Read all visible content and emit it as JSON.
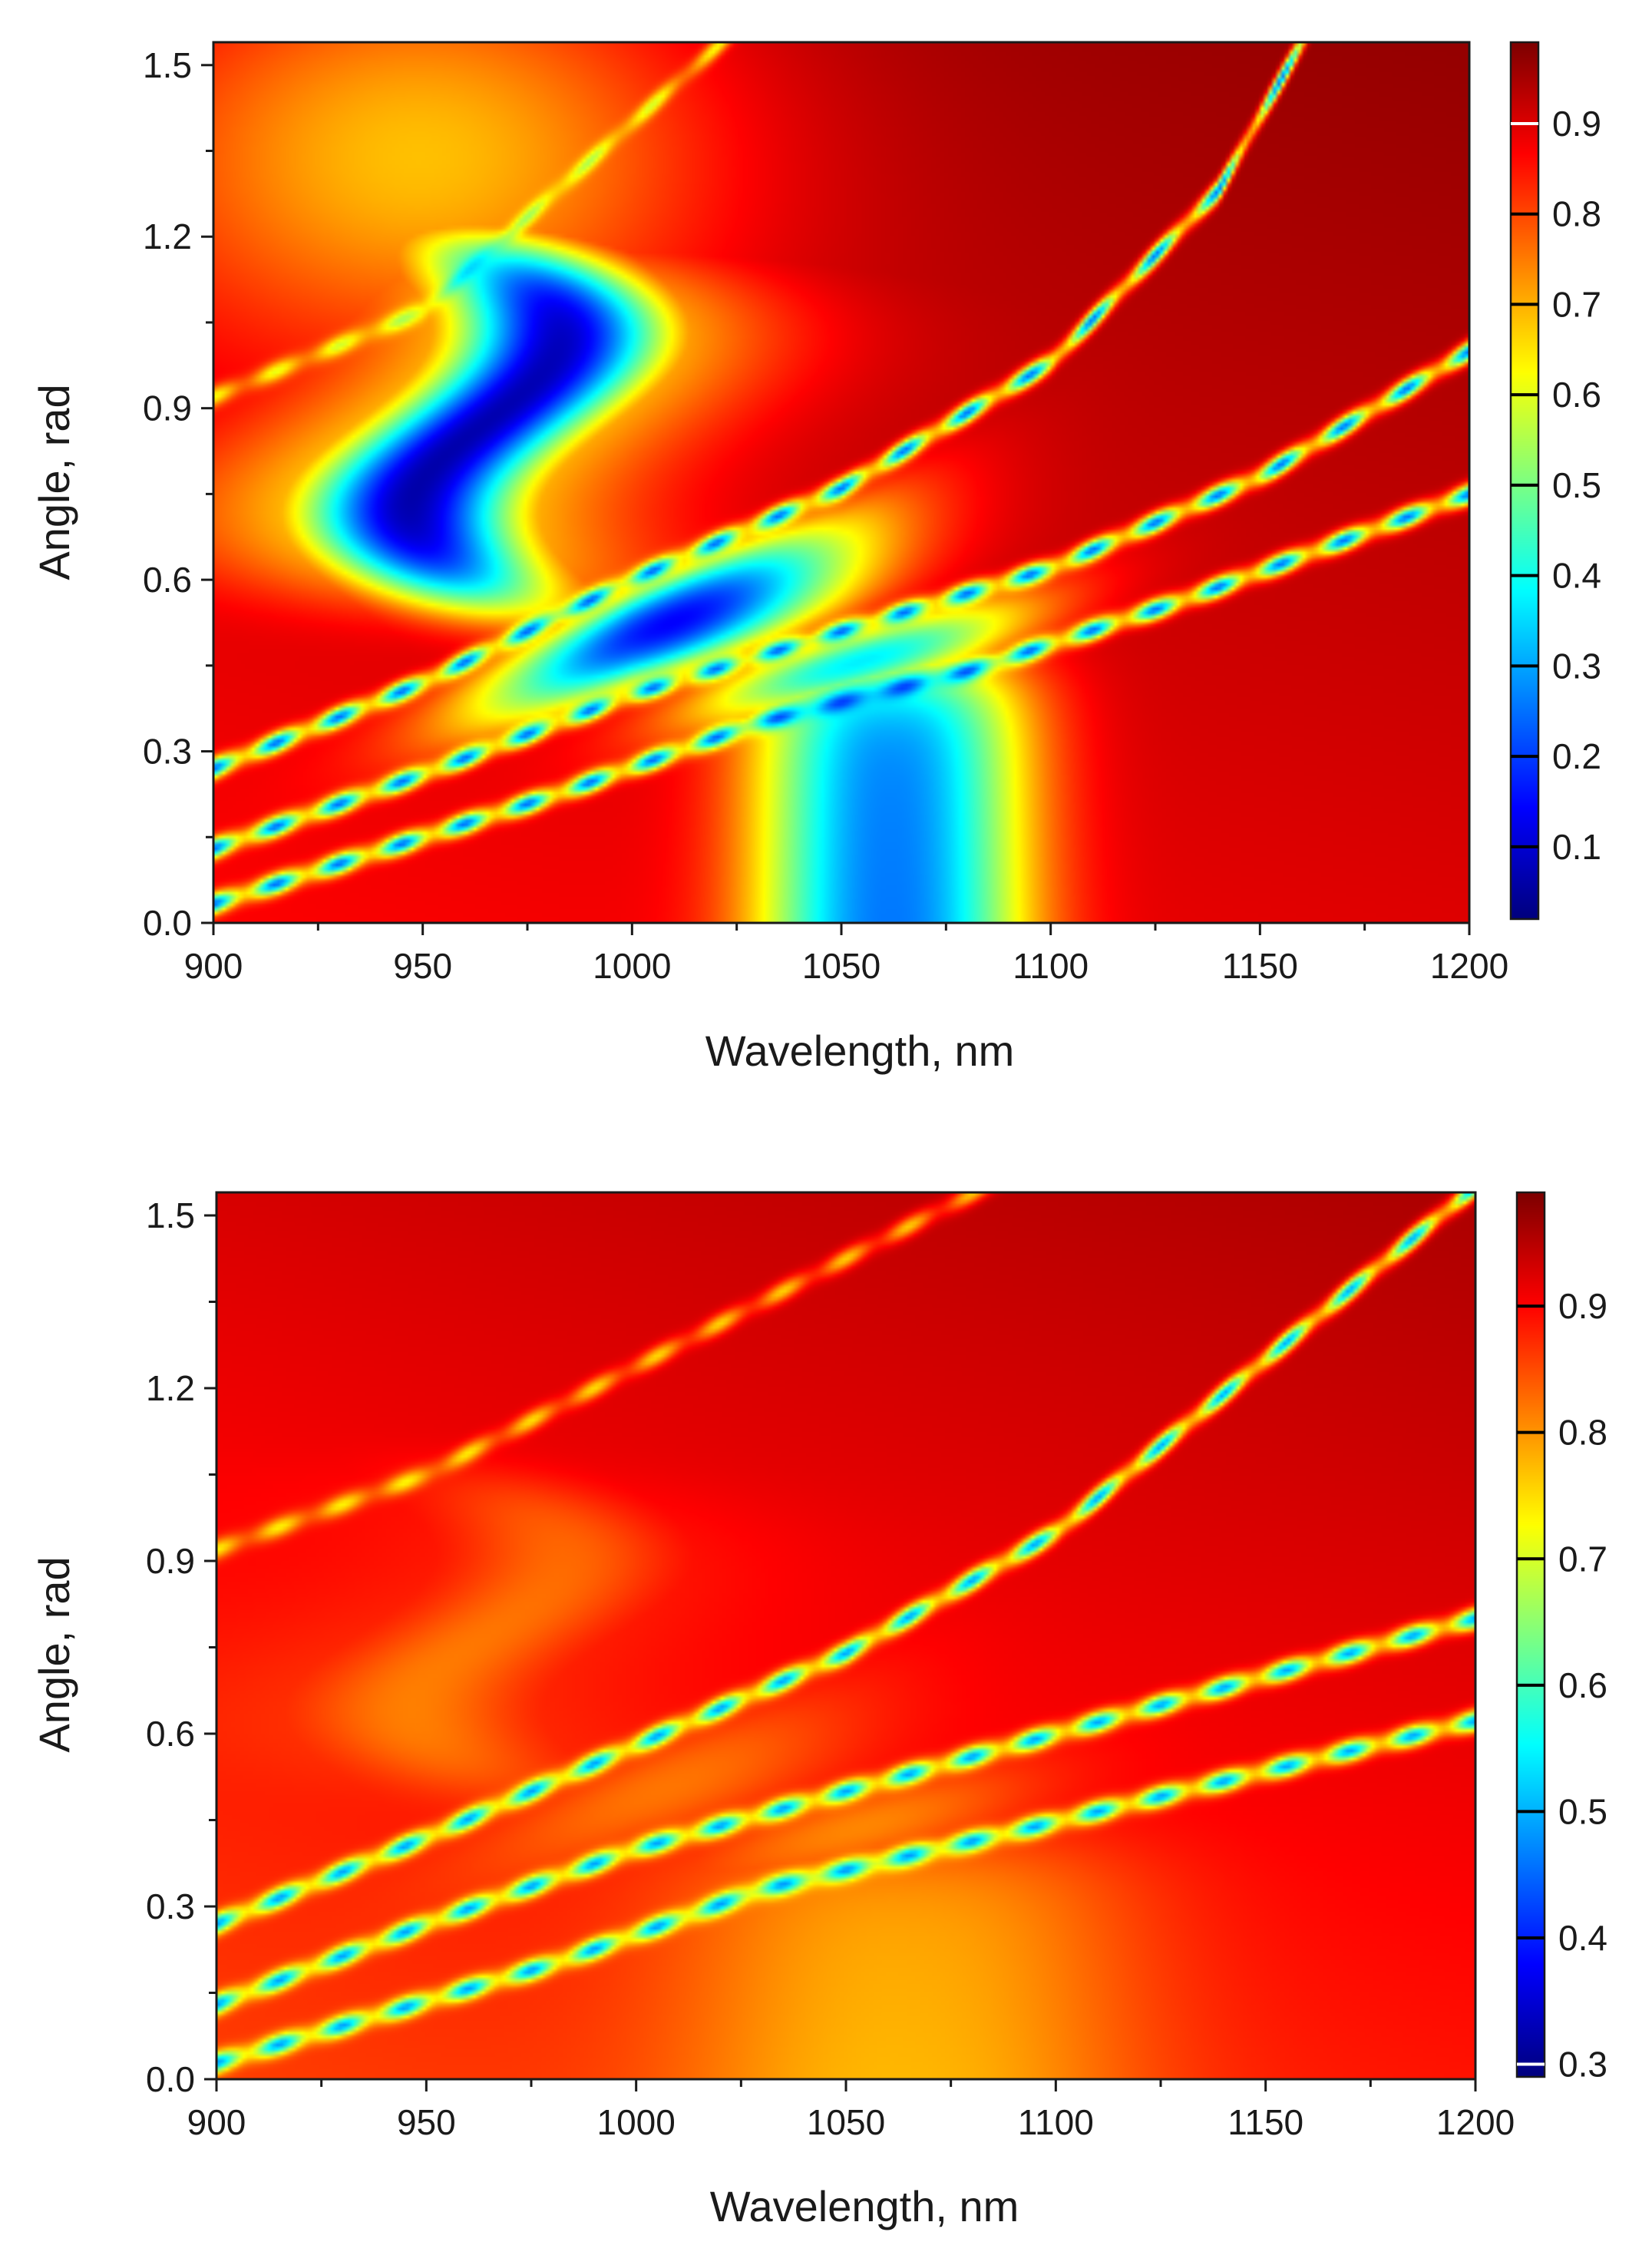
{
  "colors": {
    "colormap_stops": [
      "#00007f",
      "#0000ff",
      "#007fff",
      "#00ffff",
      "#7fff7f",
      "#ffff00",
      "#ff7f00",
      "#ff0000",
      "#7f0000"
    ],
    "axis": "#1a1a1a",
    "background": "#ffffff"
  },
  "chart_data": [
    {
      "type": "heatmap",
      "xlabel": "Wavelength, nm",
      "ylabel": "Angle, rad",
      "xlim": [
        900,
        1200
      ],
      "ylim": [
        0.0,
        1.54
      ],
      "x_ticks": [
        "900",
        "950",
        "1000",
        "1050",
        "1100",
        "1150",
        "1200"
      ],
      "y_ticks": [
        "0.0",
        "0.3",
        "0.6",
        "0.9",
        "1.2",
        "1.5"
      ],
      "colorbar": {
        "range": [
          0.02,
          0.99
        ],
        "ticks": [
          "0.1",
          "0.2",
          "0.3",
          "0.4",
          "0.5",
          "0.6",
          "0.7",
          "0.8",
          "0.9"
        ]
      },
      "features": {
        "background_level": 0.93,
        "upper_left_glow": {
          "wavelength": 950,
          "angle": 1.35,
          "level": 0.68
        },
        "dip_s": {
          "center_wavelength": 965,
          "angle_range": [
            0.55,
            1.2
          ],
          "min_level": 0.08
        },
        "dip_bottom": {
          "center_wavelength": 1062,
          "width_nm": 32,
          "angle_max": 0.45,
          "min_level": 0.3
        },
        "resonance_curves": [
          {
            "points": [
              [
                900,
                0.27
              ],
              [
                950,
                0.42
              ],
              [
                1000,
                0.6
              ],
              [
                1050,
                0.76
              ],
              [
                1100,
                0.98
              ],
              [
                1140,
                1.28
              ],
              [
                1160,
                1.54
              ]
            ]
          },
          {
            "points": [
              [
                900,
                0.13
              ],
              [
                950,
                0.26
              ],
              [
                1000,
                0.4
              ],
              [
                1050,
                0.51
              ],
              [
                1100,
                0.62
              ],
              [
                1150,
                0.78
              ],
              [
                1200,
                1.0
              ]
            ]
          },
          {
            "points": [
              [
                920,
                0.08
              ],
              [
                980,
                0.22
              ],
              [
                1030,
                0.35
              ],
              [
                1080,
                0.44
              ],
              [
                1130,
                0.56
              ],
              [
                1200,
                0.75
              ]
            ]
          },
          {
            "points": [
              [
                900,
                0.92
              ],
              [
                950,
                1.07
              ],
              [
                985,
                1.3
              ]
            ]
          }
        ]
      }
    },
    {
      "type": "heatmap",
      "xlabel": "Wavelength, nm",
      "ylabel": "Angle, rad",
      "xlim": [
        900,
        1200
      ],
      "ylim": [
        0.0,
        1.54
      ],
      "x_ticks": [
        "900",
        "950",
        "1000",
        "1050",
        "1100",
        "1150",
        "1200"
      ],
      "y_ticks": [
        "0.0",
        "0.3",
        "0.6",
        "0.9",
        "1.2",
        "1.5"
      ],
      "colorbar": {
        "range": [
          0.29,
          0.99
        ],
        "ticks": [
          "0.3",
          "0.4",
          "0.5",
          "0.6",
          "0.7",
          "0.8",
          "0.9"
        ]
      },
      "features": {
        "background_level": 0.92,
        "dip_s": {
          "center_wavelength": 965,
          "angle_range": [
            0.5,
            1.05
          ],
          "min_level": 0.84
        },
        "dip_bottom": {
          "center_wavelength": 1065,
          "width_nm": 55,
          "angle_max": 0.4,
          "min_level": 0.82
        },
        "resonance_curves": [
          {
            "points": [
              [
                900,
                0.27
              ],
              [
                950,
                0.42
              ],
              [
                1000,
                0.58
              ],
              [
                1050,
                0.74
              ],
              [
                1100,
                0.95
              ],
              [
                1150,
                1.25
              ]
            ]
          },
          {
            "points": [
              [
                900,
                0.13
              ],
              [
                950,
                0.27
              ],
              [
                1000,
                0.4
              ],
              [
                1050,
                0.5
              ],
              [
                1100,
                0.6
              ],
              [
                1200,
                0.8
              ]
            ]
          },
          {
            "points": [
              [
                910,
                0.05
              ],
              [
                980,
                0.2
              ],
              [
                1030,
                0.33
              ],
              [
                1090,
                0.43
              ],
              [
                1130,
                0.5
              ]
            ]
          },
          {
            "points": [
              [
                900,
                0.92
              ],
              [
                950,
                1.05
              ],
              [
                990,
                1.2
              ]
            ]
          }
        ]
      }
    }
  ]
}
